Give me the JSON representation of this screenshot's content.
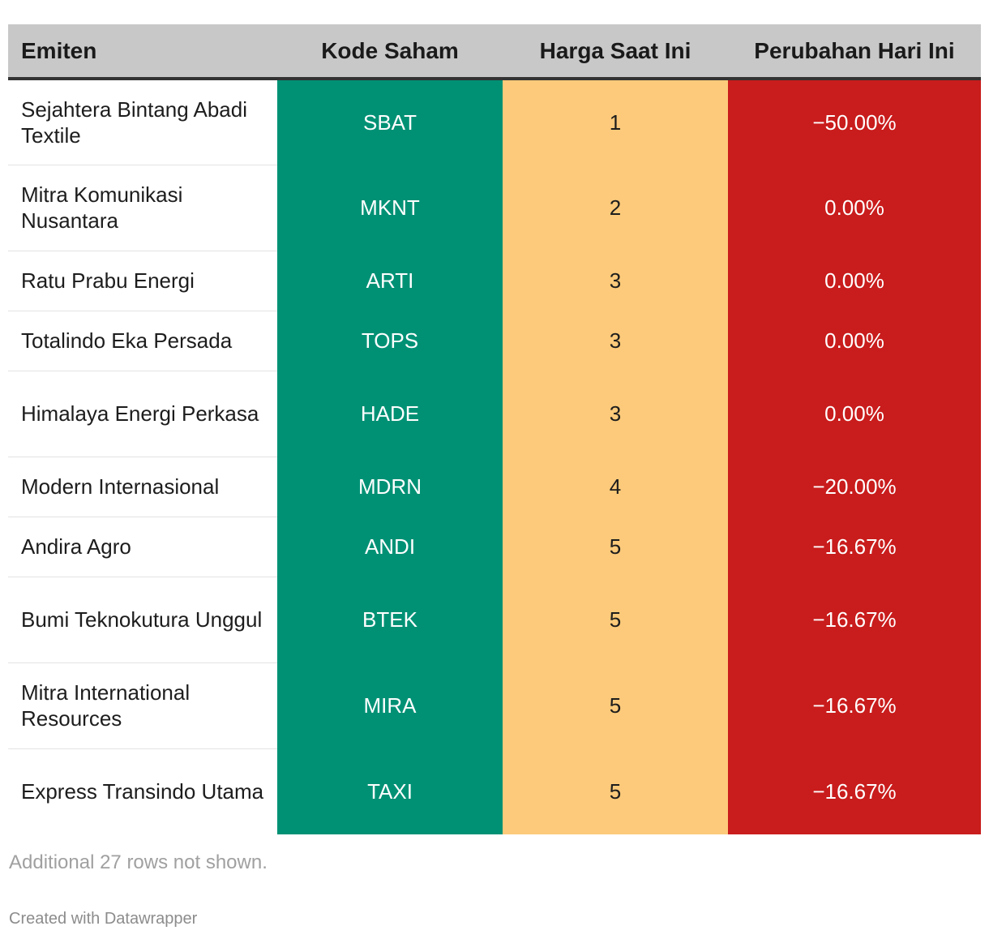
{
  "chart_data": {
    "type": "table",
    "columns": [
      "Emiten",
      "Kode Saham",
      "Harga Saat Ini",
      "Perubahan Hari Ini"
    ],
    "rows": [
      {
        "emiten": "Sejahtera Bintang Abadi Textile",
        "kode": "SBAT",
        "harga": "1",
        "perubahan": "−50.00%"
      },
      {
        "emiten": "Mitra Komunikasi Nusantara",
        "kode": "MKNT",
        "harga": "2",
        "perubahan": "0.00%"
      },
      {
        "emiten": "Ratu Prabu Energi",
        "kode": "ARTI",
        "harga": "3",
        "perubahan": "0.00%"
      },
      {
        "emiten": "Totalindo Eka Persada",
        "kode": "TOPS",
        "harga": "3",
        "perubahan": "0.00%"
      },
      {
        "emiten": "Himalaya Energi Perkasa",
        "kode": "HADE",
        "harga": "3",
        "perubahan": "0.00%"
      },
      {
        "emiten": "Modern Internasional",
        "kode": "MDRN",
        "harga": "4",
        "perubahan": "−20.00%"
      },
      {
        "emiten": "Andira Agro",
        "kode": "ANDI",
        "harga": "5",
        "perubahan": "−16.67%"
      },
      {
        "emiten": "Bumi Teknokutura Unggul",
        "kode": "BTEK",
        "harga": "5",
        "perubahan": "−16.67%"
      },
      {
        "emiten": "Mitra International Resources",
        "kode": "MIRA",
        "harga": "5",
        "perubahan": "−16.67%"
      },
      {
        "emiten": "Express Transindo Utama",
        "kode": "TAXI",
        "harga": "5",
        "perubahan": "−16.67%"
      }
    ],
    "notes": "Additional 27 rows not shown.",
    "credit": "Created with Datawrapper"
  },
  "colors": {
    "header_bg": "#c8c8c8",
    "code_col": "#009175",
    "price_col": "#fcca7a",
    "change_col": "#c91c1c"
  }
}
